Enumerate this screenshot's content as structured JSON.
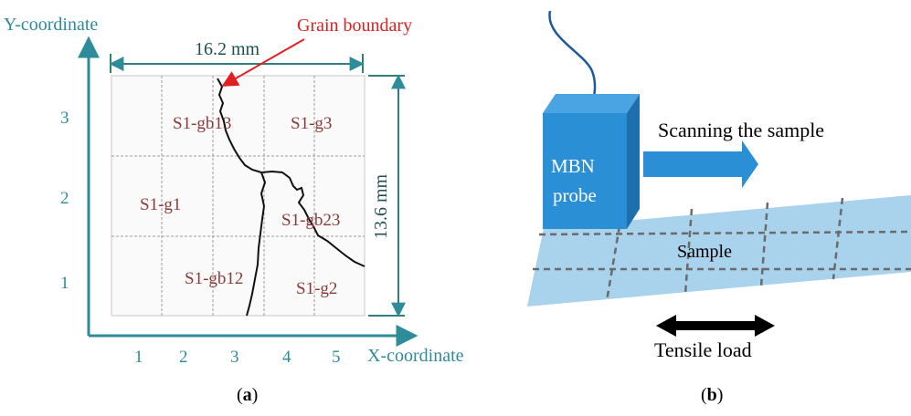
{
  "panel_a": {
    "y_axis_label": "Y-coordinate",
    "x_axis_label": "X-coordinate",
    "x_ticks": [
      "1",
      "2",
      "3",
      "4",
      "5"
    ],
    "y_ticks": [
      "3",
      "2",
      "1"
    ],
    "width_dimension": "16.2 mm",
    "height_dimension": "13.6 mm",
    "annotation": "Grain boundary",
    "regions": {
      "gb13": "S1-gb13",
      "g3": "S1-g3",
      "g1": "S1-g1",
      "gb23": "S1-gb23",
      "gb12": "S1-gb12",
      "g2": "S1-g2"
    },
    "caption_open": "(",
    "caption_letter": "a",
    "caption_close": ")"
  },
  "panel_b": {
    "probe_line1": "MBN",
    "probe_line2": "probe",
    "scan_label": "Scanning the sample",
    "sample_label": "Sample",
    "load_label": "Tensile load",
    "caption_open": "(",
    "caption_letter": "b",
    "caption_close": ")"
  },
  "colors": {
    "axis": "#2e8b9a",
    "region_text": "#8b3a3a",
    "annotation": "#e02020",
    "probe": "#2b8fd6",
    "sample": "#a9d2ec"
  }
}
